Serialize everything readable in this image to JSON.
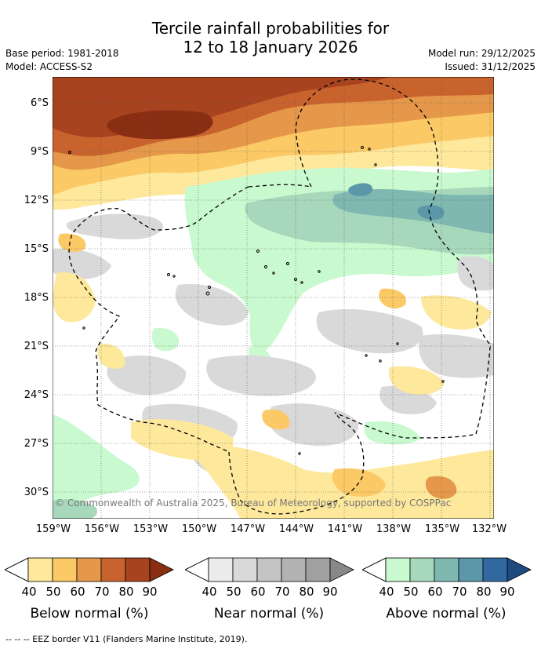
{
  "header": {
    "title_line1": "Tercile rainfall probabilities for",
    "title_line2": "12 to 18 January 2026",
    "base_period": "Base period: 1981-2018",
    "model": "Model: ACCESS-S2",
    "model_run": "Model run: 29/12/2025",
    "issued": "Issued: 31/12/2025"
  },
  "map": {
    "lat_labels": [
      "6°S",
      "9°S",
      "12°S",
      "15°S",
      "18°S",
      "21°S",
      "24°S",
      "27°S",
      "30°S"
    ],
    "lon_labels": [
      "159°W",
      "156°W",
      "153°W",
      "150°W",
      "147°W",
      "144°W",
      "141°W",
      "138°W",
      "135°W",
      "132°W"
    ],
    "copyright": "© Commonwealth of Australia 2025, Bureau of Meteorology, supported by COSPPac"
  },
  "legend": {
    "ticks": [
      "40",
      "50",
      "60",
      "70",
      "80",
      "90"
    ],
    "below": {
      "title": "Below normal (%)",
      "colors": [
        "#fde89c",
        "#fbc965",
        "#e59849",
        "#c9632e",
        "#a8431f",
        "#8a2e13"
      ]
    },
    "near": {
      "title": "Near normal (%)",
      "colors": [
        "#ececec",
        "#d9d9d9",
        "#c4c4c4",
        "#b3b3b3",
        "#a0a0a0",
        "#888888"
      ]
    },
    "above": {
      "title": "Above normal (%)",
      "colors": [
        "#c9f9cf",
        "#a8d8bc",
        "#7fb8b0",
        "#5b97a8",
        "#31689f",
        "#1e4a80"
      ]
    }
  },
  "footnote": "--  --  -- EEZ border V11 (Flanders Marine Institute, 2019)."
}
